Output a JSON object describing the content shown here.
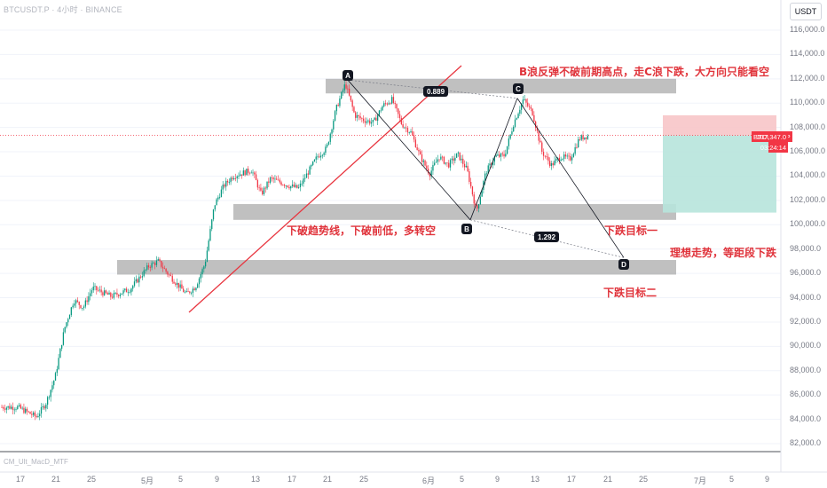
{
  "header": {
    "title": "BTCUSDT.P · 4小时 · BINANCE",
    "currency": "USDT",
    "indicator": "CM_Ult_MacD_MTF"
  },
  "chart_data": {
    "type": "candlestick",
    "symbol": "BTCUSDT.P",
    "last_price": "107,347.0",
    "countdown": "03:24:14",
    "ylim": [
      82000,
      117000
    ],
    "y_ticks": [
      "116,000.0",
      "114,000.0",
      "112,000.0",
      "110,000.0",
      "108,000.0",
      "106,000.0",
      "104,000.0",
      "102,000.0",
      "100,000.0",
      "98,000.0",
      "96,000.0",
      "94,000.0",
      "92,000.0",
      "90,000.0",
      "88,000.0",
      "86,000.0",
      "84,000.0",
      "82,000.0"
    ],
    "x_ticks": [
      "17",
      "21",
      "25",
      "5月",
      "5",
      "9",
      "13",
      "17",
      "21",
      "25",
      "6月",
      "5",
      "9",
      "13",
      "17",
      "21",
      "25",
      "7月",
      "5",
      "9"
    ],
    "price_path": [
      {
        "t": "04-17",
        "p": 85000
      },
      {
        "t": "04-19",
        "p": 84200
      },
      {
        "t": "04-20",
        "p": 85300
      },
      {
        "t": "04-21",
        "p": 87500
      },
      {
        "t": "04-22",
        "p": 91500
      },
      {
        "t": "04-23",
        "p": 93800
      },
      {
        "t": "04-24",
        "p": 93200
      },
      {
        "t": "04-25",
        "p": 94800
      },
      {
        "t": "04-27",
        "p": 94100
      },
      {
        "t": "04-29",
        "p": 94700
      },
      {
        "t": "05-01",
        "p": 96600
      },
      {
        "t": "05-02",
        "p": 97000
      },
      {
        "t": "05-03",
        "p": 96000
      },
      {
        "t": "05-05",
        "p": 94300
      },
      {
        "t": "05-06",
        "p": 94900
      },
      {
        "t": "05-07",
        "p": 96800
      },
      {
        "t": "05-08",
        "p": 101600
      },
      {
        "t": "05-09",
        "p": 103200
      },
      {
        "t": "05-10",
        "p": 104000
      },
      {
        "t": "05-12",
        "p": 104500
      },
      {
        "t": "05-13",
        "p": 102500
      },
      {
        "t": "05-14",
        "p": 103800
      },
      {
        "t": "05-16",
        "p": 103200
      },
      {
        "t": "05-17",
        "p": 103000
      },
      {
        "t": "05-19",
        "p": 105600
      },
      {
        "t": "05-20",
        "p": 106300
      },
      {
        "t": "05-21",
        "p": 109500
      },
      {
        "t": "05-22",
        "p": 111600
      },
      {
        "t": "05-23",
        "p": 109000
      },
      {
        "t": "05-24",
        "p": 108600
      },
      {
        "t": "05-25",
        "p": 108400
      },
      {
        "t": "05-26",
        "p": 109800
      },
      {
        "t": "05-27",
        "p": 110300
      },
      {
        "t": "05-28",
        "p": 108300
      },
      {
        "t": "05-29",
        "p": 107600
      },
      {
        "t": "05-30",
        "p": 105600
      },
      {
        "t": "05-31",
        "p": 104200
      },
      {
        "t": "06-01",
        "p": 105600
      },
      {
        "t": "06-02",
        "p": 104900
      },
      {
        "t": "06-03",
        "p": 105800
      },
      {
        "t": "06-04",
        "p": 104500
      },
      {
        "t": "06-05",
        "p": 101100
      },
      {
        "t": "06-06",
        "p": 104300
      },
      {
        "t": "06-07",
        "p": 105600
      },
      {
        "t": "06-08",
        "p": 105700
      },
      {
        "t": "06-09",
        "p": 108400
      },
      {
        "t": "06-10",
        "p": 110300
      },
      {
        "t": "06-11",
        "p": 109200
      },
      {
        "t": "06-12",
        "p": 106000
      },
      {
        "t": "06-13",
        "p": 104900
      },
      {
        "t": "06-14",
        "p": 105600
      },
      {
        "t": "06-15",
        "p": 105400
      },
      {
        "t": "06-16",
        "p": 107100
      },
      {
        "t": "06-17",
        "p": 107347
      }
    ],
    "zones": [
      {
        "name": "resistance-zone",
        "low": 110800,
        "high": 112000
      },
      {
        "name": "support-zone-1",
        "low": 100400,
        "high": 101700
      },
      {
        "name": "support-zone-2",
        "low": 95900,
        "high": 97100
      }
    ],
    "wave_points": [
      {
        "label": "A",
        "price": 111900
      },
      {
        "label": "B",
        "price": 100400
      },
      {
        "label": "C",
        "price": 110400
      },
      {
        "label": "D",
        "price": 97300
      }
    ],
    "ratios": [
      "0.889",
      "1.292"
    ],
    "position": {
      "stop_top": 109000,
      "entry": 107347,
      "target": 101000
    }
  },
  "annotations": {
    "main": "B浪反弹不破前期高点，走C浪下跌，大方向只能看空",
    "break": "下破趋势线，下破前低，多转空",
    "target1": "下跌目标一",
    "ideal": "理想走势，等距段下跌",
    "target2": "下跌目标二"
  },
  "colors": {
    "up": "#089981",
    "down": "#f23645",
    "zone": "#9e9e9e",
    "trend": "#e8353f",
    "stop": "#f7c5c8",
    "profit": "#b7e4db",
    "annotation": "#e0333b"
  }
}
